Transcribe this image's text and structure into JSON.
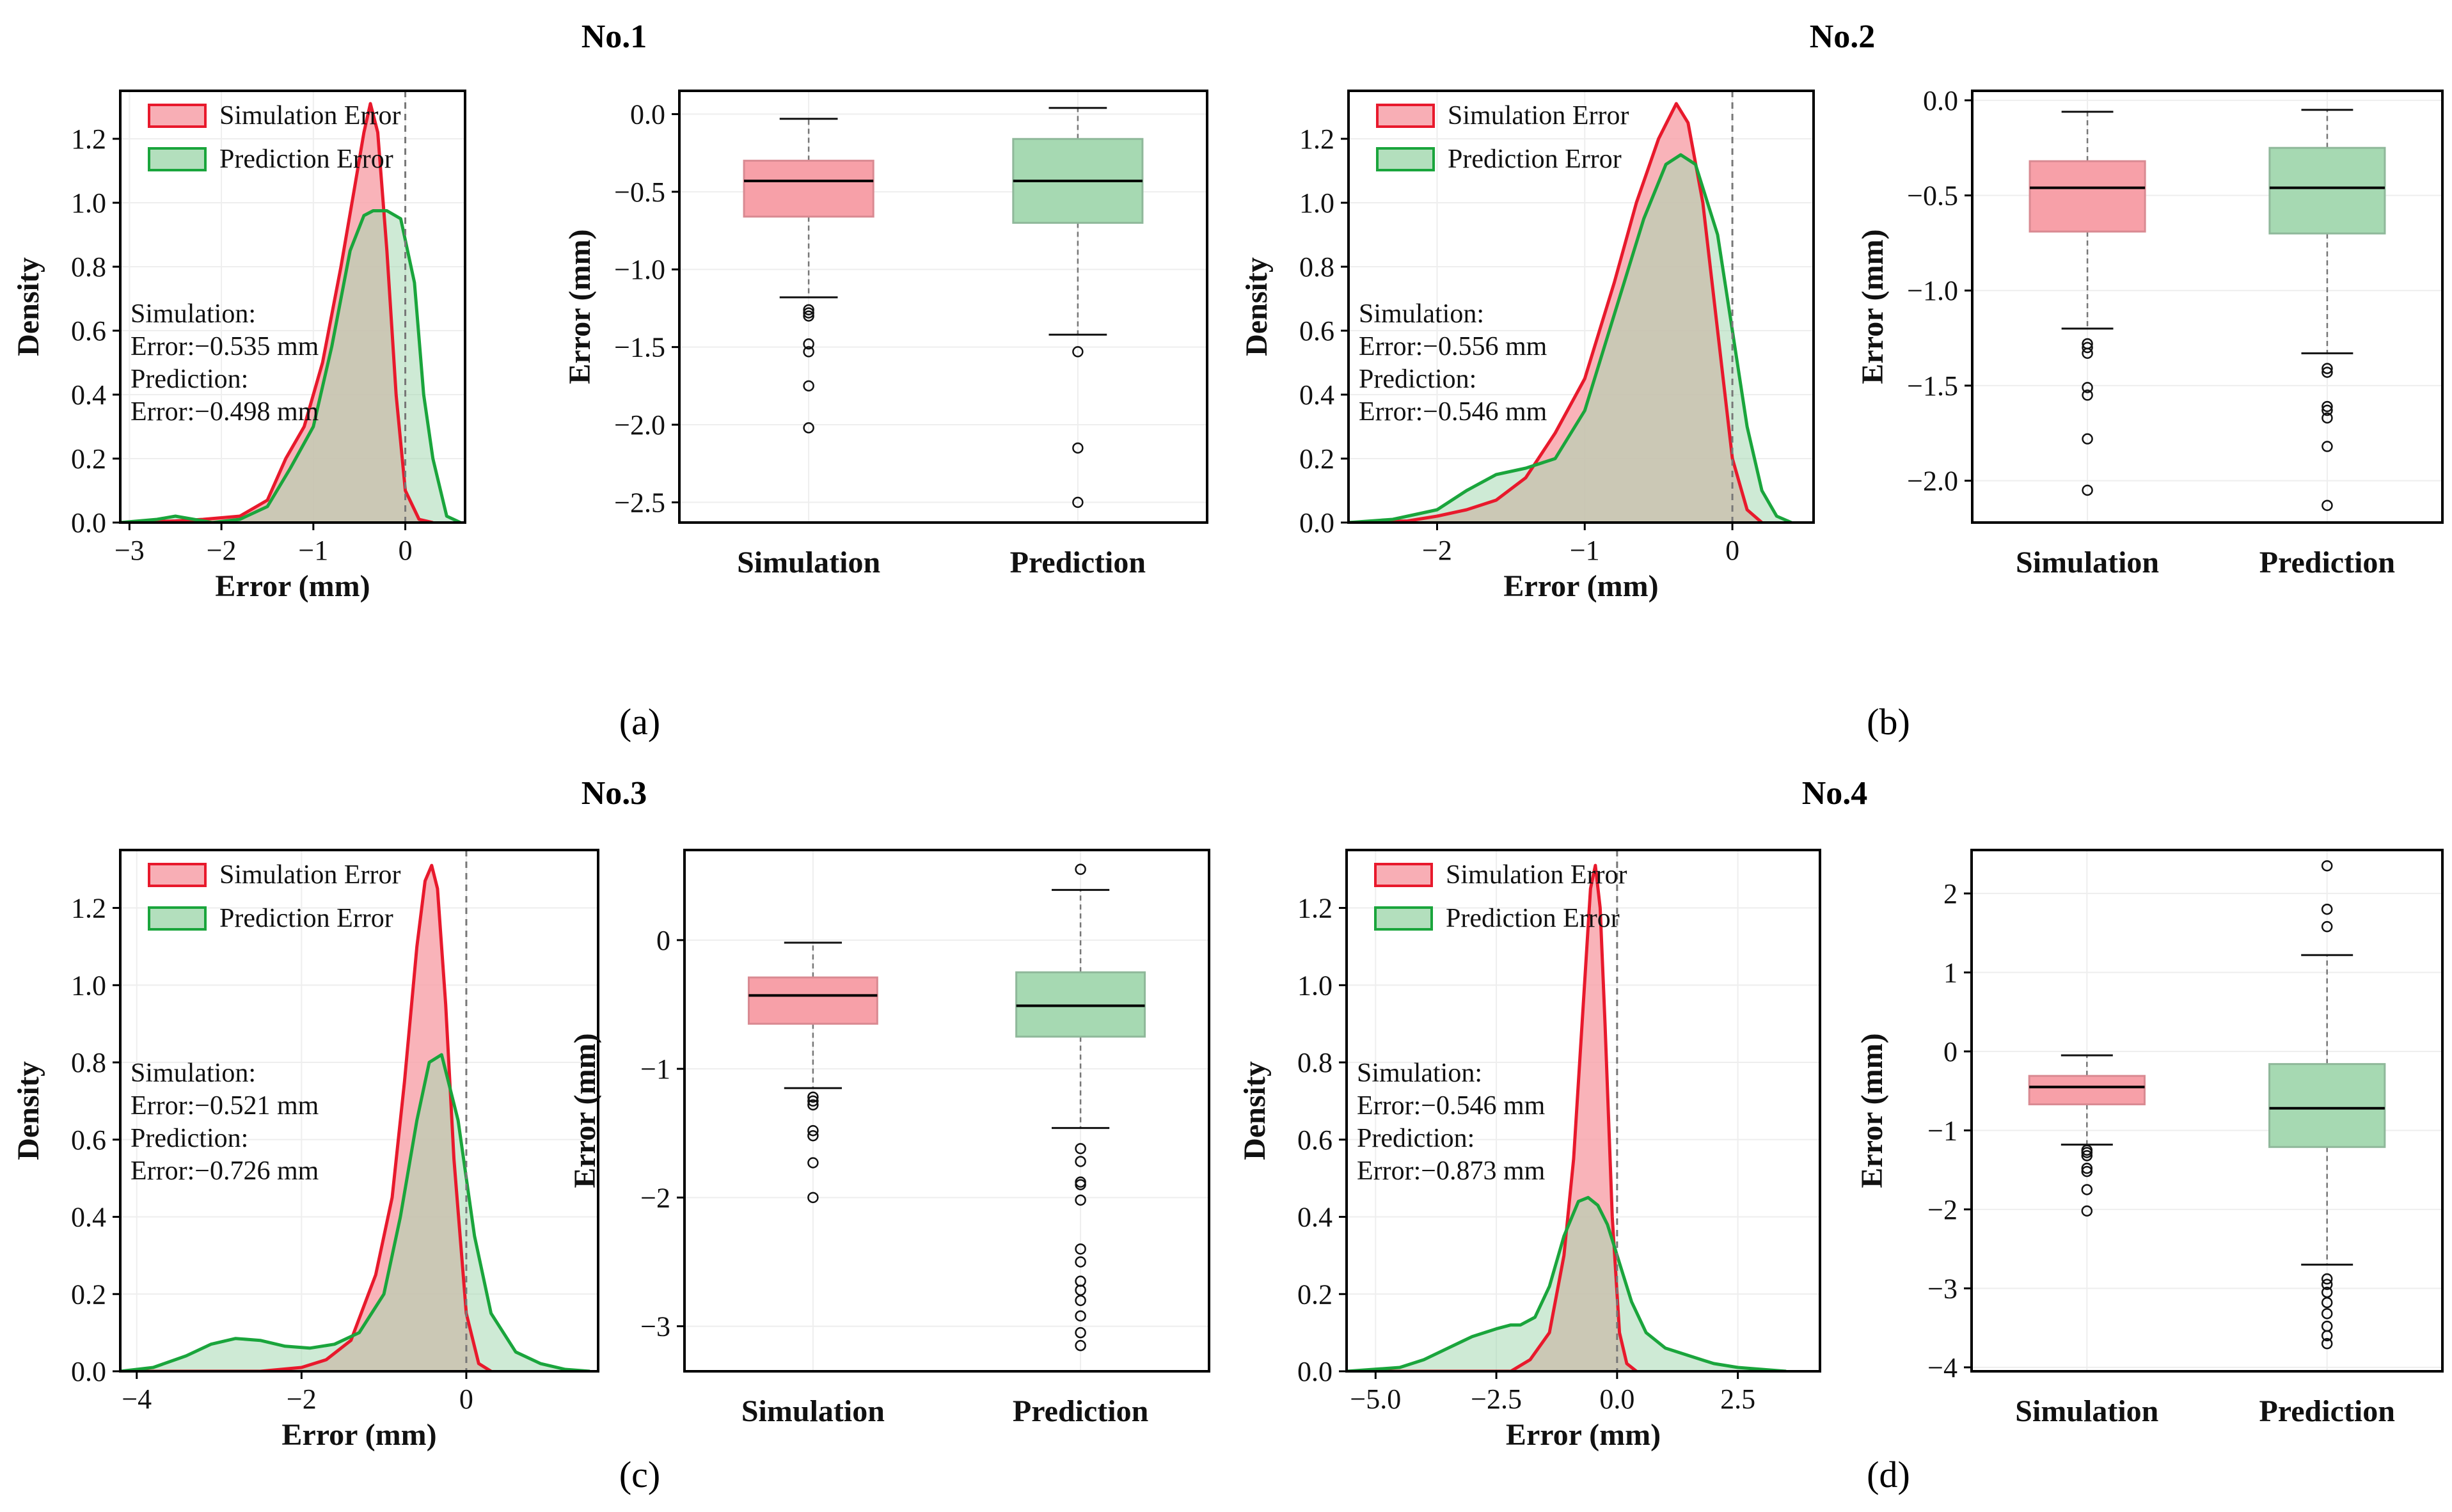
{
  "figure": {
    "panels": [
      {
        "label": "(a)",
        "title": "No.1"
      },
      {
        "label": "(b)",
        "title": "No.2"
      },
      {
        "label": "(c)",
        "title": "No.3"
      },
      {
        "label": "(d)",
        "title": "No.4"
      }
    ]
  },
  "colors": {
    "simulation_line": "#e8192c",
    "simulation_fill": "#f7a0a8",
    "prediction_line": "#1aa53c",
    "prediction_fill": "#a6d9b2",
    "overlap_fill": "#b9a98a",
    "zero_line": "#777777"
  },
  "chart_data": [
    {
      "id": "density-1",
      "type": "area",
      "xlabel": "Error (mm)",
      "ylabel": "Density",
      "xlim": [
        -3.1,
        0.65
      ],
      "ylim": [
        0,
        1.35
      ],
      "xticks": [
        -3,
        -2,
        -1,
        0
      ],
      "yticks": [
        0.0,
        0.2,
        0.4,
        0.6,
        0.8,
        1.0,
        1.2
      ],
      "xtick_labels": [
        "−3",
        "−2",
        "−1",
        "0"
      ],
      "ytick_labels": [
        "0.0",
        "0.2",
        "0.4",
        "0.6",
        "0.8",
        "1.0",
        "1.2"
      ],
      "legend": [
        "Simulation Error",
        "Prediction Error"
      ],
      "legend_position": "upper-left",
      "annotation": [
        "Simulation:",
        "Error:−0.535 mm",
        "Prediction:",
        "Error:−0.498 mm"
      ],
      "vline_x": 0,
      "series": [
        {
          "name": "Simulation Error",
          "x": [
            -3.1,
            -2.5,
            -2.2,
            -1.8,
            -1.5,
            -1.3,
            -1.1,
            -0.9,
            -0.7,
            -0.55,
            -0.45,
            -0.38,
            -0.3,
            -0.2,
            -0.1,
            0.0,
            0.15,
            0.3
          ],
          "y": [
            0,
            0.005,
            0.01,
            0.02,
            0.07,
            0.2,
            0.3,
            0.5,
            0.8,
            1.05,
            1.22,
            1.31,
            1.22,
            0.85,
            0.4,
            0.1,
            0.01,
            0
          ]
        },
        {
          "name": "Prediction Error",
          "x": [
            -3.1,
            -2.7,
            -2.5,
            -2.3,
            -2.1,
            -1.8,
            -1.5,
            -1.25,
            -1.0,
            -0.8,
            -0.6,
            -0.45,
            -0.35,
            -0.2,
            -0.05,
            0.1,
            0.2,
            0.3,
            0.45,
            0.6
          ],
          "y": [
            0,
            0.01,
            0.02,
            0.01,
            0.0,
            0.01,
            0.05,
            0.17,
            0.3,
            0.55,
            0.85,
            0.96,
            0.975,
            0.975,
            0.95,
            0.75,
            0.4,
            0.2,
            0.02,
            0
          ]
        }
      ]
    },
    {
      "id": "box-1",
      "type": "box",
      "categories": [
        "Simulation",
        "Prediction"
      ],
      "ylabel": "Error (mm)",
      "ylim": [
        -2.63,
        0.15
      ],
      "yticks": [
        0.0,
        -0.5,
        -1.0,
        -1.5,
        -2.0,
        -2.5
      ],
      "ytick_labels": [
        "0.0",
        "−0.5",
        "−1.0",
        "−1.5",
        "−2.0",
        "−2.5"
      ],
      "boxes": [
        {
          "q1": -0.66,
          "median": -0.43,
          "q3": -0.3,
          "whisker_low": -1.18,
          "whisker_high": -0.03,
          "outliers": [
            -1.26,
            -1.28,
            -1.3,
            -1.48,
            -1.53,
            -1.75,
            -2.02
          ]
        },
        {
          "q1": -0.7,
          "median": -0.43,
          "q3": -0.16,
          "whisker_low": -1.42,
          "whisker_high": 0.04,
          "outliers": [
            -1.53,
            -2.15,
            -2.5
          ]
        }
      ]
    },
    {
      "id": "density-2",
      "type": "area",
      "xlabel": "Error (mm)",
      "ylabel": "Density",
      "xlim": [
        -2.6,
        0.55
      ],
      "ylim": [
        0,
        1.35
      ],
      "xticks": [
        -2,
        -1,
        0
      ],
      "yticks": [
        0.0,
        0.2,
        0.4,
        0.6,
        0.8,
        1.0,
        1.2
      ],
      "xtick_labels": [
        "−2",
        "−1",
        "0"
      ],
      "ytick_labels": [
        "0.0",
        "0.2",
        "0.4",
        "0.6",
        "0.8",
        "1.0",
        "1.2"
      ],
      "legend": [
        "Simulation Error",
        "Prediction Error"
      ],
      "legend_position": "upper-left",
      "annotation": [
        "Simulation:",
        "Error:−0.556 mm",
        "Prediction:",
        "Error:−0.546 mm"
      ],
      "vline_x": 0,
      "series": [
        {
          "name": "Simulation Error",
          "x": [
            -2.6,
            -2.2,
            -2.0,
            -1.8,
            -1.6,
            -1.4,
            -1.2,
            -1.0,
            -0.8,
            -0.65,
            -0.5,
            -0.38,
            -0.3,
            -0.2,
            -0.1,
            0.0,
            0.1,
            0.2
          ],
          "y": [
            0,
            0.005,
            0.02,
            0.04,
            0.07,
            0.14,
            0.28,
            0.45,
            0.75,
            1.0,
            1.2,
            1.31,
            1.25,
            1.0,
            0.6,
            0.2,
            0.04,
            0
          ]
        },
        {
          "name": "Prediction Error",
          "x": [
            -2.6,
            -2.3,
            -2.0,
            -1.8,
            -1.6,
            -1.4,
            -1.2,
            -1.0,
            -0.8,
            -0.6,
            -0.45,
            -0.35,
            -0.25,
            -0.1,
            0.0,
            0.1,
            0.2,
            0.3,
            0.4
          ],
          "y": [
            0,
            0.01,
            0.04,
            0.1,
            0.15,
            0.17,
            0.2,
            0.35,
            0.65,
            0.95,
            1.12,
            1.15,
            1.12,
            0.9,
            0.6,
            0.3,
            0.1,
            0.02,
            0
          ]
        }
      ]
    },
    {
      "id": "box-2",
      "type": "box",
      "categories": [
        "Simulation",
        "Prediction"
      ],
      "ylabel": "Error (mm)",
      "ylim": [
        -2.22,
        0.05
      ],
      "yticks": [
        0.0,
        -0.5,
        -1.0,
        -1.5,
        -2.0
      ],
      "ytick_labels": [
        "0.0",
        "−0.5",
        "−1.0",
        "−1.5",
        "−2.0"
      ],
      "boxes": [
        {
          "q1": -0.69,
          "median": -0.46,
          "q3": -0.32,
          "whisker_low": -1.2,
          "whisker_high": -0.06,
          "outliers": [
            -1.28,
            -1.3,
            -1.33,
            -1.51,
            -1.55,
            -1.78,
            -2.05
          ]
        },
        {
          "q1": -0.7,
          "median": -0.46,
          "q3": -0.25,
          "whisker_low": -1.33,
          "whisker_high": -0.05,
          "outliers": [
            -1.41,
            -1.43,
            -1.61,
            -1.63,
            -1.67,
            -1.82,
            -2.13
          ]
        }
      ]
    },
    {
      "id": "density-3",
      "type": "area",
      "xlabel": "Error (mm)",
      "ylabel": "Density",
      "xlim": [
        -4.2,
        1.6
      ],
      "ylim": [
        0,
        1.35
      ],
      "xticks": [
        -4,
        -2,
        0
      ],
      "yticks": [
        0.0,
        0.2,
        0.4,
        0.6,
        0.8,
        1.0,
        1.2
      ],
      "xtick_labels": [
        "−4",
        "−2",
        "0"
      ],
      "ytick_labels": [
        "0.0",
        "0.2",
        "0.4",
        "0.6",
        "0.8",
        "1.0",
        "1.2"
      ],
      "legend": [
        "Simulation Error",
        "Prediction Error"
      ],
      "legend_position": "upper-left",
      "annotation": [
        "Simulation:",
        "Error:−0.521 mm",
        "Prediction:",
        "Error:−0.726 mm"
      ],
      "vline_x": 0,
      "series": [
        {
          "name": "Simulation Error",
          "x": [
            -4.2,
            -2.5,
            -2.0,
            -1.7,
            -1.4,
            -1.1,
            -0.9,
            -0.75,
            -0.6,
            -0.5,
            -0.42,
            -0.35,
            -0.25,
            -0.15,
            0.0,
            0.15,
            0.3
          ],
          "y": [
            0,
            0.0,
            0.01,
            0.03,
            0.08,
            0.25,
            0.45,
            0.75,
            1.1,
            1.27,
            1.31,
            1.25,
            0.95,
            0.55,
            0.15,
            0.02,
            0
          ]
        },
        {
          "name": "Prediction Error",
          "x": [
            -4.2,
            -3.8,
            -3.4,
            -3.1,
            -2.8,
            -2.5,
            -2.2,
            -1.9,
            -1.6,
            -1.3,
            -1.0,
            -0.8,
            -0.6,
            -0.45,
            -0.3,
            -0.1,
            0.1,
            0.3,
            0.6,
            0.9,
            1.2,
            1.5
          ],
          "y": [
            0,
            0.01,
            0.04,
            0.07,
            0.085,
            0.08,
            0.065,
            0.06,
            0.07,
            0.1,
            0.2,
            0.4,
            0.65,
            0.8,
            0.82,
            0.65,
            0.35,
            0.15,
            0.05,
            0.02,
            0.005,
            0
          ]
        }
      ]
    },
    {
      "id": "box-3",
      "type": "box",
      "categories": [
        "Simulation",
        "Prediction"
      ],
      "ylabel": "Error (mm)",
      "ylim": [
        -3.35,
        0.7
      ],
      "yticks": [
        0,
        -1,
        -2,
        -3
      ],
      "ytick_labels": [
        "0",
        "−1",
        "−2",
        "−3"
      ],
      "boxes": [
        {
          "q1": -0.65,
          "median": -0.43,
          "q3": -0.29,
          "whisker_low": -1.15,
          "whisker_high": -0.02,
          "outliers": [
            -1.22,
            -1.25,
            -1.28,
            -1.48,
            -1.52,
            -1.73,
            -2.0
          ]
        },
        {
          "q1": -0.75,
          "median": -0.51,
          "q3": -0.25,
          "whisker_low": -1.46,
          "whisker_high": 0.39,
          "outliers": [
            0.55,
            -1.62,
            -1.72,
            -1.88,
            -1.9,
            -2.02,
            -2.4,
            -2.5,
            -2.65,
            -2.72,
            -2.8,
            -2.92,
            -3.05,
            -3.15
          ]
        }
      ]
    },
    {
      "id": "density-4",
      "type": "area",
      "xlabel": "Error (mm)",
      "ylabel": "Density",
      "xlim": [
        -5.6,
        4.2
      ],
      "ylim": [
        0,
        1.35
      ],
      "xticks": [
        -5.0,
        -2.5,
        0.0,
        2.5
      ],
      "yticks": [
        0.0,
        0.2,
        0.4,
        0.6,
        0.8,
        1.0,
        1.2
      ],
      "xtick_labels": [
        "−5.0",
        "−2.5",
        "0.0",
        "2.5"
      ],
      "ytick_labels": [
        "0.0",
        "0.2",
        "0.4",
        "0.6",
        "0.8",
        "1.0",
        "1.2"
      ],
      "legend": [
        "Simulation Error",
        "Prediction Error"
      ],
      "legend_position": "upper-left",
      "annotation": [
        "Simulation:",
        "Error:−0.546 mm",
        "Prediction:",
        "Error:−0.873 mm"
      ],
      "vline_x": 0,
      "series": [
        {
          "name": "Simulation Error",
          "x": [
            -5.6,
            -2.2,
            -1.8,
            -1.4,
            -1.1,
            -0.9,
            -0.7,
            -0.55,
            -0.45,
            -0.35,
            -0.25,
            -0.1,
            0.05,
            0.2,
            0.4
          ],
          "y": [
            0,
            0.0,
            0.03,
            0.1,
            0.3,
            0.55,
            0.95,
            1.25,
            1.31,
            1.2,
            0.9,
            0.4,
            0.1,
            0.02,
            0
          ]
        },
        {
          "name": "Prediction Error",
          "x": [
            -5.6,
            -4.5,
            -4.0,
            -3.5,
            -3.0,
            -2.5,
            -2.2,
            -2.0,
            -1.7,
            -1.4,
            -1.1,
            -0.8,
            -0.6,
            -0.4,
            -0.2,
            0.0,
            0.3,
            0.6,
            1.0,
            1.5,
            2.0,
            2.5,
            3.0,
            3.5
          ],
          "y": [
            0,
            0.01,
            0.03,
            0.06,
            0.09,
            0.11,
            0.12,
            0.12,
            0.14,
            0.22,
            0.35,
            0.44,
            0.45,
            0.43,
            0.38,
            0.3,
            0.18,
            0.1,
            0.06,
            0.04,
            0.02,
            0.01,
            0.005,
            0
          ]
        }
      ]
    },
    {
      "id": "box-4",
      "type": "box",
      "categories": [
        "Simulation",
        "Prediction"
      ],
      "ylabel": "Error (mm)",
      "ylim": [
        -4.05,
        2.55
      ],
      "yticks": [
        2,
        1,
        0,
        -1,
        -2,
        -3,
        -4
      ],
      "ytick_labels": [
        "2",
        "1",
        "0",
        "−1",
        "−2",
        "−3",
        "−4"
      ],
      "boxes": [
        {
          "q1": -0.67,
          "median": -0.45,
          "q3": -0.31,
          "whisker_low": -1.18,
          "whisker_high": -0.05,
          "outliers": [
            -1.25,
            -1.28,
            -1.32,
            -1.48,
            -1.52,
            -1.75,
            -2.02
          ]
        },
        {
          "q1": -1.21,
          "median": -0.72,
          "q3": -0.16,
          "whisker_low": -2.7,
          "whisker_high": 1.22,
          "outliers": [
            1.58,
            1.8,
            2.35,
            -2.88,
            -2.95,
            -3.05,
            -3.18,
            -3.32,
            -3.48,
            -3.6,
            -3.7
          ]
        }
      ]
    }
  ]
}
